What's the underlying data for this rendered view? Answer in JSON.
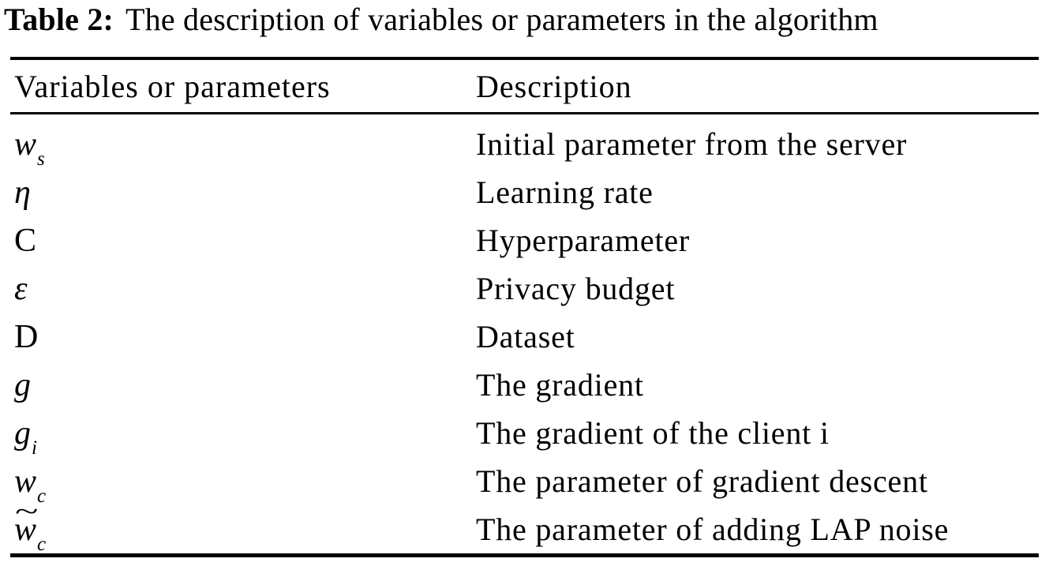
{
  "title": {
    "label": "Table 2:",
    "text": "The description of variables or parameters in the algorithm"
  },
  "table": {
    "headers": [
      "Variables or parameters",
      "Description"
    ],
    "rows": [
      {
        "symbol_base": "w",
        "symbol_sub": "s",
        "description": "Initial parameter from the server"
      },
      {
        "symbol_base": "η",
        "description": "Learning rate"
      },
      {
        "symbol_base": "C",
        "description": "Hyperparameter"
      },
      {
        "symbol_base": "ε",
        "description": "Privacy budget"
      },
      {
        "symbol_base": "D",
        "description": "Dataset"
      },
      {
        "symbol_base": "g",
        "description": "The gradient"
      },
      {
        "symbol_base": "g",
        "symbol_sub": "i",
        "description": "The gradient of the client i"
      },
      {
        "symbol_base": "w",
        "symbol_sub": "c",
        "description": "The parameter of gradient descent"
      },
      {
        "symbol_base": "w",
        "symbol_sub": "c",
        "symbol_accent": "~",
        "description": "The parameter of adding LAP noise"
      }
    ]
  },
  "colors": {
    "text": "#000000",
    "background": "#ffffff",
    "rule": "#000000"
  }
}
